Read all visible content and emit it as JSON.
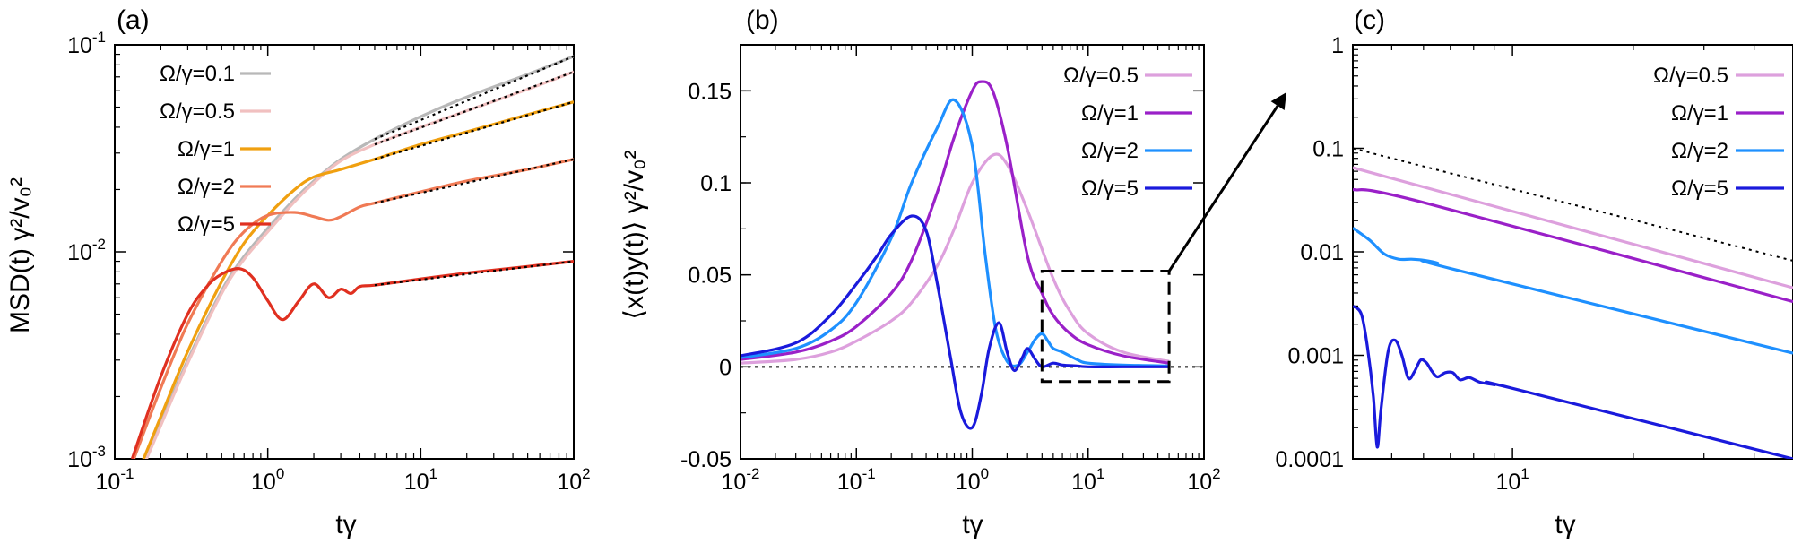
{
  "panels": [
    {
      "id": "a",
      "panel_label": "(a)",
      "xlabel": "tγ",
      "ylabel": "MSD(t) γ²/v₀²",
      "xticks": [
        {
          "v": 0.1,
          "base": "10",
          "exp": "-1"
        },
        {
          "v": 1,
          "base": "10",
          "exp": "0"
        },
        {
          "v": 10,
          "base": "10",
          "exp": "1"
        },
        {
          "v": 100,
          "base": "10",
          "exp": "2"
        }
      ],
      "yticks": [
        {
          "v": 0.001,
          "base": "10",
          "exp": "-3"
        },
        {
          "v": 0.01,
          "base": "10",
          "exp": "-2"
        },
        {
          "v": 0.1,
          "base": "10",
          "exp": "-1"
        }
      ]
    },
    {
      "id": "b",
      "panel_label": "(b)",
      "xlabel": "tγ",
      "ylabel": "⟨x(t)y(t)⟩ γ²/v₀²",
      "xticks": [
        {
          "v": 0.01,
          "base": "10",
          "exp": "-2"
        },
        {
          "v": 0.1,
          "base": "10",
          "exp": "-1"
        },
        {
          "v": 1,
          "base": "10",
          "exp": "0"
        },
        {
          "v": 10,
          "base": "10",
          "exp": "1"
        },
        {
          "v": 100,
          "base": "10",
          "exp": "2"
        }
      ],
      "yticks": [
        {
          "v": -0.05,
          "text": "-0.05"
        },
        {
          "v": 0,
          "text": "0"
        },
        {
          "v": 0.05,
          "text": "0.05"
        },
        {
          "v": 0.1,
          "text": "0.1"
        },
        {
          "v": 0.15,
          "text": "0.15"
        }
      ]
    },
    {
      "id": "c",
      "panel_label": "(c)",
      "xlabel": "tγ",
      "ylabel": "",
      "xticks": [
        {
          "v": 10,
          "base": "10",
          "exp": "1"
        }
      ],
      "yticks": [
        {
          "v": 0.0001,
          "text": "0.0001"
        },
        {
          "v": 0.001,
          "text": "0.001"
        },
        {
          "v": 0.01,
          "text": "0.01"
        },
        {
          "v": 0.1,
          "text": "0.1"
        },
        {
          "v": 1,
          "text": "1"
        }
      ]
    }
  ],
  "chart_data": [
    {
      "type": "line",
      "panel": "(a)",
      "xlabel": "tγ",
      "ylabel": "MSD(t) γ²/v₀²",
      "xscale": "log",
      "yscale": "log",
      "xlim": [
        0.1,
        100
      ],
      "ylim": [
        0.001,
        0.1
      ],
      "legend_position": "top-left",
      "series": [
        {
          "name": "Ω/γ=0.1",
          "color": "#b8b8b8",
          "x": [
            0.15,
            0.2,
            0.3,
            0.5,
            0.7,
            1,
            1.5,
            2,
            3,
            5,
            10,
            20,
            50,
            100
          ],
          "y": [
            0.0009,
            0.0015,
            0.003,
            0.0065,
            0.0095,
            0.013,
            0.018,
            0.022,
            0.028,
            0.035,
            0.045,
            0.056,
            0.072,
            0.088
          ]
        },
        {
          "name": "Ω/γ=0.5",
          "color": "#f1c0c0",
          "x": [
            0.15,
            0.2,
            0.3,
            0.5,
            0.7,
            1,
            1.5,
            2,
            3,
            5,
            10,
            20,
            50,
            100
          ],
          "y": [
            0.00088,
            0.00145,
            0.0029,
            0.0063,
            0.0092,
            0.0125,
            0.0175,
            0.0215,
            0.0275,
            0.033,
            0.04,
            0.048,
            0.061,
            0.074
          ]
        },
        {
          "name": "Ω/γ=1",
          "color": "#f0a010",
          "x": [
            0.15,
            0.2,
            0.3,
            0.5,
            0.7,
            1,
            1.5,
            2,
            3,
            5,
            10,
            20,
            50,
            100
          ],
          "y": [
            0.00095,
            0.0016,
            0.0033,
            0.0072,
            0.011,
            0.015,
            0.02,
            0.023,
            0.025,
            0.028,
            0.033,
            0.038,
            0.046,
            0.053
          ]
        },
        {
          "name": "Ω/γ=2",
          "color": "#f07a55",
          "x": [
            0.13,
            0.2,
            0.3,
            0.5,
            0.7,
            1,
            1.5,
            2,
            2.5,
            3,
            4,
            5,
            10,
            20,
            50,
            100
          ],
          "y": [
            0.00095,
            0.0022,
            0.0045,
            0.009,
            0.0125,
            0.015,
            0.0155,
            0.0148,
            0.0142,
            0.0148,
            0.0165,
            0.0172,
            0.0195,
            0.022,
            0.025,
            0.028
          ]
        },
        {
          "name": "Ω/γ=5",
          "color": "#e03020",
          "x": [
            0.13,
            0.2,
            0.3,
            0.4,
            0.5,
            0.65,
            0.8,
            1,
            1.25,
            1.6,
            2,
            2.5,
            3,
            3.5,
            4,
            5,
            10,
            20,
            50,
            100
          ],
          "y": [
            0.001,
            0.0025,
            0.005,
            0.0068,
            0.0078,
            0.0083,
            0.0075,
            0.0058,
            0.0047,
            0.0058,
            0.007,
            0.006,
            0.0066,
            0.0063,
            0.0068,
            0.0069,
            0.0074,
            0.0079,
            0.0085,
            0.009
          ]
        }
      ],
      "fits": [
        {
          "style": "black dotted",
          "x": [
            5,
            100
          ],
          "y": [
            0.035,
            0.088
          ]
        },
        {
          "style": "black dotted",
          "x": [
            5,
            100
          ],
          "y": [
            0.033,
            0.074
          ]
        },
        {
          "style": "black dotted",
          "x": [
            5,
            100
          ],
          "y": [
            0.028,
            0.053
          ]
        },
        {
          "style": "black dotted",
          "x": [
            5,
            100
          ],
          "y": [
            0.0172,
            0.028
          ]
        },
        {
          "style": "black dotted",
          "x": [
            5,
            100
          ],
          "y": [
            0.0069,
            0.009
          ]
        }
      ]
    },
    {
      "type": "line",
      "panel": "(b)",
      "xlabel": "tγ",
      "ylabel": "⟨x(t)y(t)⟩ γ²/v₀²",
      "xscale": "log",
      "yscale": "linear",
      "xlim": [
        0.01,
        100
      ],
      "ylim": [
        -0.05,
        0.175
      ],
      "legend_position": "top-right",
      "reference_line": {
        "y": 0,
        "style": "black dotted"
      },
      "inset_box": {
        "x": [
          4,
          50
        ],
        "y": [
          -0.008,
          0.052
        ],
        "style": "black dashed"
      },
      "series": [
        {
          "name": "Ω/γ=0.5",
          "color": "#dda0dd",
          "x": [
            0.01,
            0.03,
            0.06,
            0.1,
            0.2,
            0.3,
            0.5,
            0.7,
            1,
            1.5,
            2,
            3,
            5,
            7,
            10,
            20,
            50
          ],
          "y": [
            0.002,
            0.004,
            0.008,
            0.014,
            0.025,
            0.035,
            0.055,
            0.075,
            0.1,
            0.115,
            0.11,
            0.085,
            0.048,
            0.03,
            0.018,
            0.008,
            0.003
          ]
        },
        {
          "name": "Ω/γ=1",
          "color": "#9a20c8",
          "x": [
            0.01,
            0.03,
            0.06,
            0.1,
            0.2,
            0.3,
            0.5,
            0.7,
            1,
            1.2,
            1.5,
            2,
            3,
            4,
            5,
            7,
            10,
            20,
            50
          ],
          "y": [
            0.004,
            0.008,
            0.014,
            0.022,
            0.04,
            0.058,
            0.095,
            0.125,
            0.15,
            0.155,
            0.15,
            0.12,
            0.06,
            0.04,
            0.028,
            0.018,
            0.012,
            0.006,
            0.002
          ]
        },
        {
          "name": "Ω/γ=2",
          "color": "#1e90ff",
          "x": [
            0.01,
            0.03,
            0.06,
            0.1,
            0.2,
            0.3,
            0.5,
            0.7,
            1,
            1.3,
            1.6,
            2,
            2.5,
            3,
            3.5,
            4,
            4.5,
            5,
            6,
            8,
            10,
            20,
            50
          ],
          "y": [
            0.005,
            0.01,
            0.02,
            0.035,
            0.07,
            0.1,
            0.13,
            0.145,
            0.12,
            0.06,
            0.02,
            0.003,
            0.001,
            0.008,
            0.015,
            0.018,
            0.014,
            0.01,
            0.008,
            0.004,
            0.002,
            0.001,
            0.0005
          ]
        },
        {
          "name": "Ω/γ=5",
          "color": "#1a1adc",
          "x": [
            0.01,
            0.03,
            0.06,
            0.1,
            0.15,
            0.2,
            0.3,
            0.4,
            0.5,
            0.65,
            0.8,
            1,
            1.2,
            1.4,
            1.7,
            2,
            2.3,
            2.7,
            3,
            3.5,
            4,
            5,
            6,
            8,
            10,
            20,
            50
          ],
          "y": [
            0.006,
            0.013,
            0.028,
            0.045,
            0.06,
            0.072,
            0.082,
            0.074,
            0.045,
            0.005,
            -0.025,
            -0.033,
            -0.015,
            0.01,
            0.024,
            0.008,
            -0.002,
            0.005,
            0.01,
            0.004,
            0.0,
            0.002,
            0.001,
            0.0005,
            0.0,
            0.0,
            0.0
          ]
        }
      ]
    },
    {
      "type": "line",
      "panel": "(c)",
      "xlabel": "tγ",
      "ylabel": "",
      "xscale": "log",
      "yscale": "log",
      "xlim": [
        4,
        50
      ],
      "ylim": [
        0.0001,
        1
      ],
      "legend_position": "top-right",
      "series": [
        {
          "name": "Ω/γ=0.5",
          "color": "#dda0dd",
          "x": [
            4,
            50
          ],
          "y": [
            0.065,
            0.0045
          ]
        },
        {
          "name": "Ω/γ=1",
          "color": "#9a20c8",
          "x": [
            4,
            6,
            50
          ],
          "y": [
            0.04,
            0.03,
            0.0033
          ]
        },
        {
          "name": "Ω/γ=2",
          "color": "#1e90ff",
          "x": [
            4,
            4.4,
            4.8,
            5.2,
            5.6,
            6,
            6.5,
            7,
            50
          ],
          "y": [
            0.017,
            0.013,
            0.0095,
            0.0085,
            0.0085,
            0.0083,
            0.0078,
            0.0069,
            0.00105
          ]
        },
        {
          "name": "Ω/γ=5",
          "color": "#1a1adc",
          "x": [
            4,
            4.2,
            4.35,
            4.5,
            4.6,
            4.7,
            4.9,
            5.1,
            5.3,
            5.5,
            5.7,
            5.9,
            6.1,
            6.3,
            6.5,
            6.8,
            7.1,
            7.4,
            7.8,
            8.3,
            9,
            10,
            50
          ],
          "y": [
            0.003,
            0.0025,
            0.0012,
            0.0004,
            0.00013,
            0.0003,
            0.0011,
            0.0014,
            0.001,
            0.0006,
            0.0007,
            0.0009,
            0.00085,
            0.0007,
            0.00062,
            0.00068,
            0.00068,
            0.00058,
            0.00061,
            0.00055,
            0.00052,
            0.00048,
            0.0001
          ]
        }
      ],
      "reference_line": {
        "style": "black dotted",
        "x": [
          4,
          50
        ],
        "y": [
          0.1,
          0.0082
        ]
      }
    }
  ]
}
